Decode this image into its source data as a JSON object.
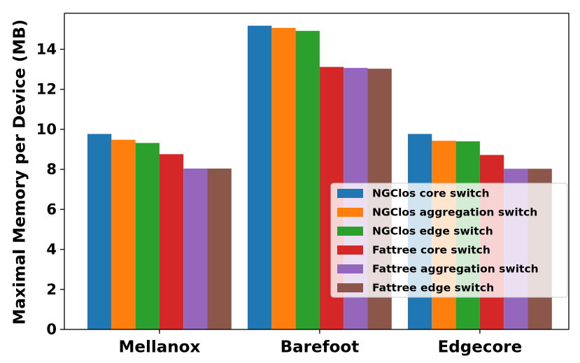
{
  "chart_data": {
    "type": "bar",
    "title": "",
    "xlabel": "",
    "ylabel": "Maximal Memory per Device (MB)",
    "ylim": [
      0,
      15.8
    ],
    "yticks": [
      0,
      2,
      4,
      6,
      8,
      10,
      12,
      14
    ],
    "grid": false,
    "legend_position": "lower-right",
    "categories": [
      "Mellanox",
      "Barefoot",
      "Edgecore"
    ],
    "series": [
      {
        "name": "NGClos core switch",
        "color": "#1f77b4",
        "values": [
          9.77,
          15.18,
          9.77
        ]
      },
      {
        "name": "NGClos aggregation switch",
        "color": "#ff7f0e",
        "values": [
          9.48,
          15.07,
          9.43
        ]
      },
      {
        "name": "NGClos edge switch",
        "color": "#2ca02c",
        "values": [
          9.32,
          14.92,
          9.4
        ]
      },
      {
        "name": "Fattree core switch",
        "color": "#d62728",
        "values": [
          8.76,
          13.12,
          8.72
        ]
      },
      {
        "name": "Fattree aggregation switch",
        "color": "#9467bd",
        "values": [
          8.04,
          13.07,
          8.03
        ]
      },
      {
        "name": "Fattree edge switch",
        "color": "#8c564b",
        "values": [
          8.04,
          13.03,
          8.03
        ]
      }
    ]
  }
}
